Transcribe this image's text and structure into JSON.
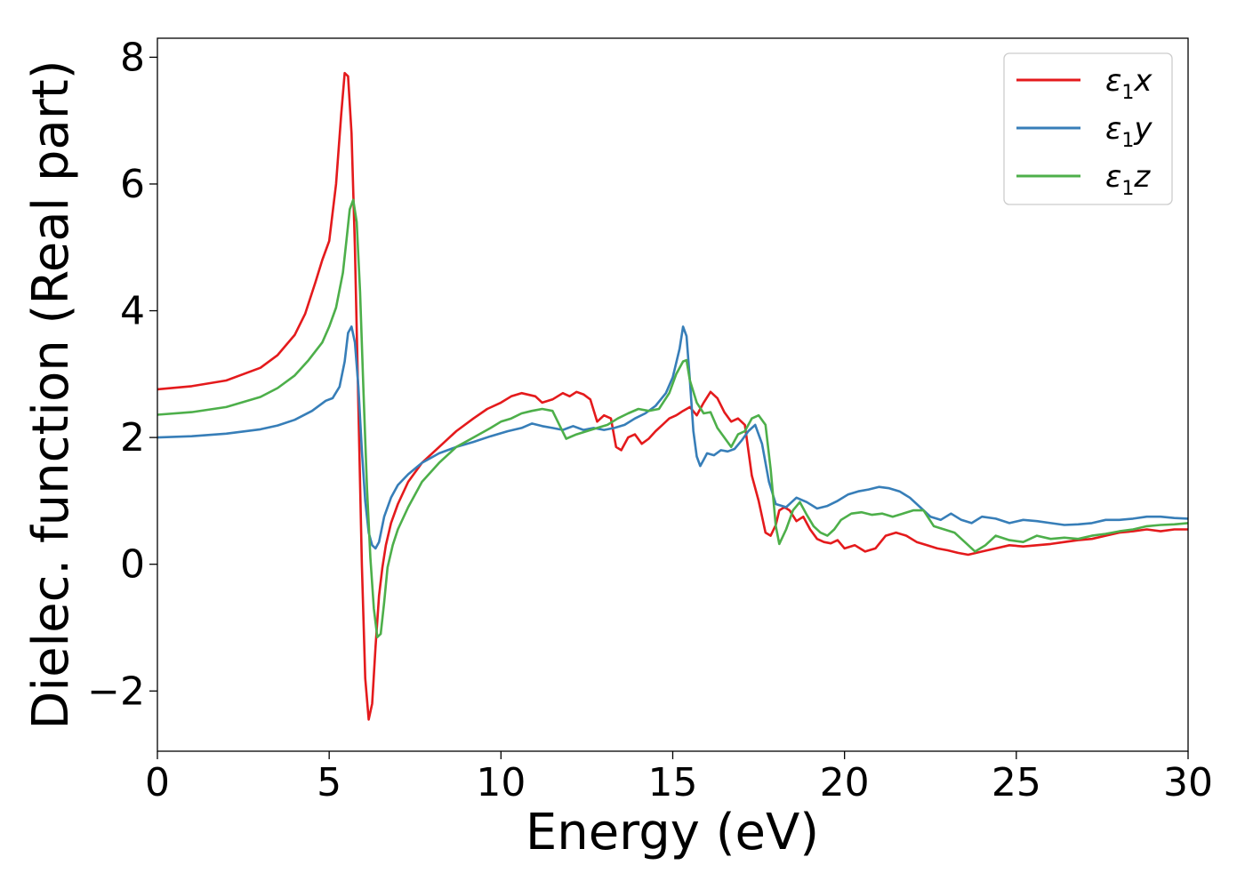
{
  "chart_data": {
    "type": "line",
    "title": "",
    "xlabel": "Energy (eV)",
    "ylabel": "Dielec. function (Real part)",
    "xlim": [
      0,
      30
    ],
    "ylim": [
      -2.95,
      8.3
    ],
    "xticks": [
      0,
      5,
      10,
      15,
      20,
      25,
      30
    ],
    "xtick_labels": [
      "0",
      "5",
      "10",
      "15",
      "20",
      "25",
      "30"
    ],
    "yticks": [
      -2,
      0,
      2,
      4,
      6,
      8
    ],
    "ytick_labels": [
      "−2",
      "0",
      "2",
      "4",
      "6",
      "8"
    ],
    "grid": false,
    "legend_position": "top-right",
    "series": [
      {
        "name": "ε1x",
        "name_base": "ε",
        "name_sub": "1",
        "name_suffix": "x",
        "color": "#e41a1c",
        "x": [
          0,
          1,
          2,
          3,
          3.5,
          4,
          4.3,
          4.6,
          4.8,
          5.0,
          5.2,
          5.35,
          5.45,
          5.55,
          5.65,
          5.75,
          5.85,
          5.95,
          6.05,
          6.15,
          6.25,
          6.35,
          6.45,
          6.55,
          6.65,
          6.8,
          7.0,
          7.3,
          7.7,
          8.2,
          8.7,
          9.2,
          9.6,
          10.0,
          10.3,
          10.6,
          11.0,
          11.2,
          11.5,
          11.8,
          12.0,
          12.2,
          12.4,
          12.6,
          12.8,
          13.0,
          13.2,
          13.35,
          13.5,
          13.7,
          13.9,
          14.1,
          14.3,
          14.5,
          14.7,
          14.9,
          15.1,
          15.3,
          15.5,
          15.7,
          15.9,
          16.1,
          16.3,
          16.5,
          16.7,
          16.9,
          17.1,
          17.3,
          17.5,
          17.7,
          17.85,
          18.0,
          18.1,
          18.25,
          18.4,
          18.6,
          18.8,
          19.0,
          19.2,
          19.4,
          19.6,
          19.8,
          20.0,
          20.3,
          20.6,
          20.9,
          21.2,
          21.5,
          21.8,
          22.1,
          22.4,
          22.7,
          23.0,
          23.3,
          23.6,
          24.0,
          24.4,
          24.8,
          25.2,
          25.6,
          26.0,
          26.4,
          26.8,
          27.2,
          27.6,
          28.0,
          28.4,
          28.8,
          29.2,
          29.6,
          30.0
        ],
        "y": [
          2.76,
          2.81,
          2.9,
          3.1,
          3.3,
          3.62,
          3.95,
          4.45,
          4.8,
          5.1,
          6.0,
          7.1,
          7.75,
          7.7,
          6.8,
          5.0,
          2.5,
          0.0,
          -1.8,
          -2.45,
          -2.2,
          -1.3,
          -0.5,
          -0.05,
          0.3,
          0.65,
          0.95,
          1.3,
          1.6,
          1.85,
          2.1,
          2.3,
          2.45,
          2.55,
          2.65,
          2.7,
          2.65,
          2.55,
          2.6,
          2.7,
          2.65,
          2.72,
          2.68,
          2.6,
          2.25,
          2.35,
          2.3,
          1.85,
          1.8,
          2.0,
          2.05,
          1.9,
          1.98,
          2.1,
          2.2,
          2.3,
          2.35,
          2.42,
          2.48,
          2.35,
          2.55,
          2.72,
          2.62,
          2.4,
          2.25,
          2.3,
          2.2,
          1.4,
          1.0,
          0.5,
          0.45,
          0.62,
          0.85,
          0.9,
          0.85,
          0.68,
          0.75,
          0.55,
          0.4,
          0.35,
          0.33,
          0.38,
          0.25,
          0.3,
          0.2,
          0.25,
          0.45,
          0.5,
          0.45,
          0.35,
          0.3,
          0.25,
          0.22,
          0.18,
          0.15,
          0.2,
          0.25,
          0.3,
          0.28,
          0.3,
          0.32,
          0.35,
          0.38,
          0.4,
          0.45,
          0.5,
          0.52,
          0.55,
          0.52,
          0.55,
          0.55
        ]
      },
      {
        "name": "ε1y",
        "name_base": "ε",
        "name_sub": "1",
        "name_suffix": "y",
        "color": "#377eb8",
        "x": [
          0,
          1,
          2,
          3,
          3.5,
          4,
          4.5,
          4.9,
          5.1,
          5.3,
          5.45,
          5.55,
          5.65,
          5.75,
          5.85,
          5.95,
          6.05,
          6.15,
          6.25,
          6.35,
          6.45,
          6.6,
          6.8,
          7.0,
          7.3,
          7.7,
          8.2,
          8.7,
          9.2,
          9.7,
          10.2,
          10.6,
          10.9,
          11.2,
          11.5,
          11.8,
          12.1,
          12.4,
          12.7,
          13.0,
          13.3,
          13.6,
          13.9,
          14.2,
          14.5,
          14.8,
          15.0,
          15.2,
          15.3,
          15.4,
          15.5,
          15.6,
          15.7,
          15.8,
          15.9,
          16.0,
          16.2,
          16.4,
          16.6,
          16.8,
          17.0,
          17.2,
          17.4,
          17.6,
          17.8,
          18.0,
          18.3,
          18.6,
          18.9,
          19.2,
          19.5,
          19.8,
          20.1,
          20.4,
          20.7,
          21.0,
          21.3,
          21.6,
          21.9,
          22.2,
          22.5,
          22.8,
          23.1,
          23.4,
          23.7,
          24.0,
          24.4,
          24.8,
          25.2,
          25.6,
          26.0,
          26.4,
          26.8,
          27.2,
          27.6,
          28.0,
          28.4,
          28.8,
          29.2,
          29.6,
          30.0
        ],
        "y": [
          2.0,
          2.02,
          2.06,
          2.13,
          2.19,
          2.28,
          2.42,
          2.58,
          2.62,
          2.8,
          3.2,
          3.65,
          3.75,
          3.5,
          2.8,
          1.8,
          1.0,
          0.5,
          0.3,
          0.25,
          0.35,
          0.75,
          1.05,
          1.25,
          1.42,
          1.6,
          1.75,
          1.85,
          1.93,
          2.02,
          2.1,
          2.15,
          2.22,
          2.18,
          2.15,
          2.12,
          2.18,
          2.12,
          2.15,
          2.12,
          2.15,
          2.2,
          2.3,
          2.38,
          2.5,
          2.7,
          2.95,
          3.4,
          3.75,
          3.6,
          2.9,
          2.1,
          1.7,
          1.55,
          1.65,
          1.75,
          1.72,
          1.8,
          1.78,
          1.82,
          1.95,
          2.1,
          2.2,
          1.9,
          1.3,
          0.95,
          0.9,
          1.05,
          0.98,
          0.88,
          0.92,
          1.0,
          1.1,
          1.15,
          1.18,
          1.22,
          1.2,
          1.15,
          1.05,
          0.9,
          0.75,
          0.7,
          0.8,
          0.7,
          0.65,
          0.75,
          0.72,
          0.65,
          0.7,
          0.68,
          0.65,
          0.62,
          0.63,
          0.65,
          0.7,
          0.7,
          0.72,
          0.75,
          0.75,
          0.73,
          0.72
        ]
      },
      {
        "name": "ε1z",
        "name_base": "ε",
        "name_sub": "1",
        "name_suffix": "z",
        "color": "#4daf4a",
        "x": [
          0,
          1,
          2,
          3,
          3.5,
          4,
          4.4,
          4.8,
          5.0,
          5.2,
          5.4,
          5.5,
          5.6,
          5.7,
          5.8,
          5.9,
          6.0,
          6.1,
          6.2,
          6.3,
          6.4,
          6.5,
          6.6,
          6.7,
          6.85,
          7.0,
          7.3,
          7.7,
          8.2,
          8.7,
          9.2,
          9.7,
          10.0,
          10.3,
          10.6,
          10.9,
          11.2,
          11.5,
          11.7,
          11.9,
          12.2,
          12.5,
          12.8,
          13.1,
          13.4,
          13.7,
          14.0,
          14.3,
          14.6,
          14.9,
          15.1,
          15.3,
          15.4,
          15.5,
          15.7,
          15.9,
          16.1,
          16.3,
          16.5,
          16.7,
          16.9,
          17.1,
          17.3,
          17.5,
          17.7,
          17.85,
          18.0,
          18.1,
          18.3,
          18.5,
          18.7,
          18.9,
          19.1,
          19.3,
          19.5,
          19.7,
          19.9,
          20.2,
          20.5,
          20.8,
          21.1,
          21.4,
          21.7,
          22.0,
          22.3,
          22.6,
          22.9,
          23.2,
          23.5,
          23.8,
          24.1,
          24.4,
          24.8,
          25.2,
          25.6,
          26.0,
          26.4,
          26.8,
          27.2,
          27.6,
          28.0,
          28.4,
          28.8,
          29.2,
          29.6,
          30.0
        ],
        "y": [
          2.36,
          2.4,
          2.48,
          2.64,
          2.78,
          2.98,
          3.22,
          3.5,
          3.75,
          4.05,
          4.6,
          5.1,
          5.6,
          5.75,
          5.4,
          4.3,
          2.7,
          1.2,
          0.1,
          -0.7,
          -1.15,
          -1.1,
          -0.6,
          -0.05,
          0.3,
          0.55,
          0.9,
          1.3,
          1.6,
          1.85,
          2.0,
          2.15,
          2.25,
          2.3,
          2.38,
          2.42,
          2.45,
          2.42,
          2.2,
          1.98,
          2.05,
          2.1,
          2.15,
          2.2,
          2.3,
          2.38,
          2.45,
          2.42,
          2.45,
          2.7,
          3.0,
          3.2,
          3.22,
          2.9,
          2.55,
          2.38,
          2.4,
          2.15,
          2.0,
          1.85,
          2.05,
          2.1,
          2.3,
          2.35,
          2.2,
          1.5,
          0.6,
          0.32,
          0.55,
          0.85,
          0.98,
          0.78,
          0.6,
          0.5,
          0.45,
          0.55,
          0.7,
          0.8,
          0.82,
          0.78,
          0.8,
          0.75,
          0.8,
          0.85,
          0.85,
          0.6,
          0.55,
          0.5,
          0.35,
          0.2,
          0.3,
          0.45,
          0.38,
          0.35,
          0.45,
          0.4,
          0.42,
          0.4,
          0.45,
          0.48,
          0.52,
          0.55,
          0.6,
          0.62,
          0.63,
          0.65
        ]
      }
    ]
  }
}
